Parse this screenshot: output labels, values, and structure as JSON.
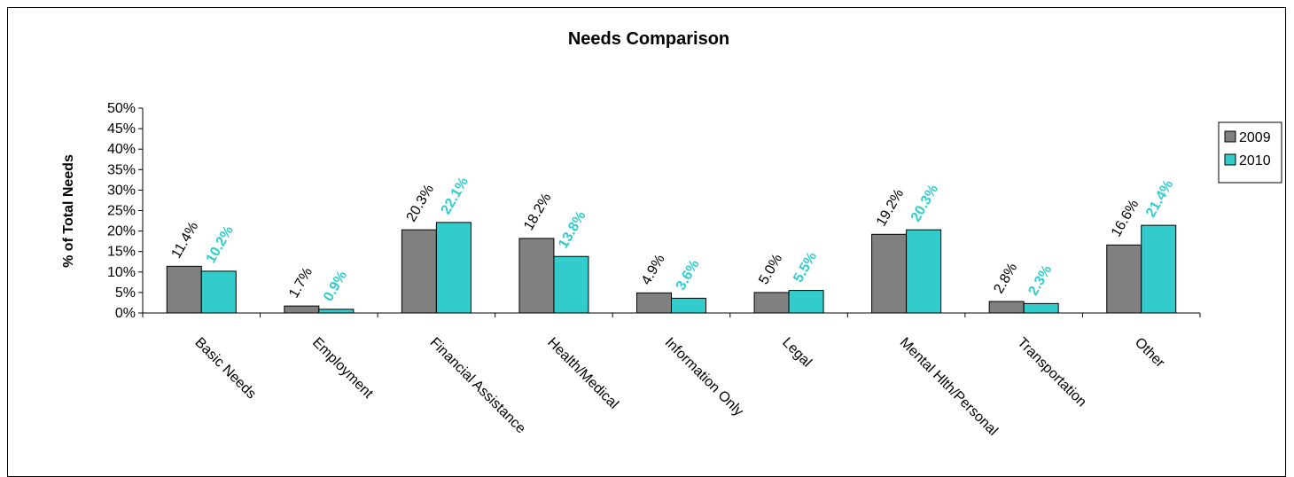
{
  "chart_data": {
    "type": "bar",
    "title": "Needs Comparison",
    "xlabel": "",
    "ylabel": "% of Total Needs",
    "ylim": [
      0,
      50
    ],
    "yticks": [
      "0%",
      "5%",
      "10%",
      "15%",
      "20%",
      "25%",
      "30%",
      "35%",
      "40%",
      "45%",
      "50%"
    ],
    "categories": [
      "Basic Needs",
      "Employment",
      "Financial Assistance",
      "Health/Medical",
      "Information Only",
      "Legal",
      "Mental Hlth/Personal",
      "Transportation",
      "Other"
    ],
    "series": [
      {
        "name": "2009",
        "color": "#808080",
        "label_color": "#000000",
        "label_bold": false,
        "values": [
          11.4,
          1.7,
          20.3,
          18.2,
          4.9,
          5.0,
          19.2,
          2.8,
          16.6
        ],
        "labels": [
          "11.4%",
          "1.7%",
          "20.3%",
          "18.2%",
          "4.9%",
          "5.0%",
          "19.2%",
          "2.8%",
          "16.6%"
        ]
      },
      {
        "name": "2010",
        "color": "#33CCCC",
        "label_color": "#33CCCC",
        "label_bold": true,
        "values": [
          10.2,
          0.9,
          22.1,
          13.8,
          3.6,
          5.5,
          20.3,
          2.3,
          21.4
        ],
        "labels": [
          "10.2%",
          "0.9%",
          "22.1%",
          "13.8%",
          "3.6%",
          "5.5%",
          "20.3%",
          "2.3%",
          "21.4%"
        ]
      }
    ],
    "grid": false,
    "legend": "right"
  }
}
